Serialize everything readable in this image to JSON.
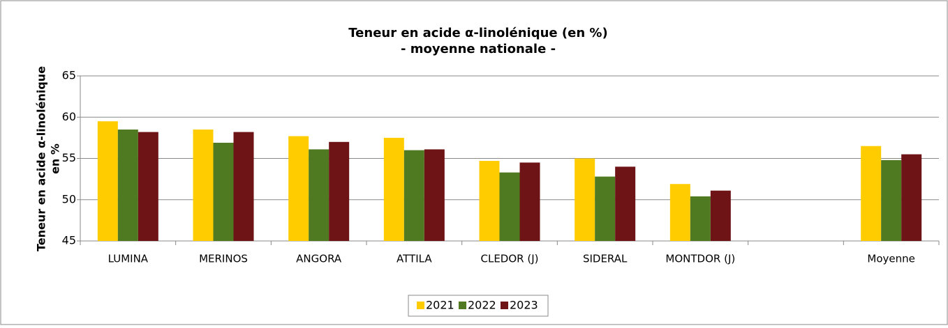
{
  "chart_data": {
    "type": "bar",
    "title": [
      "Teneur en acide α-linolénique (en %)",
      "- moyenne nationale -"
    ],
    "ylabel": [
      "Teneur en acide α-linolénique",
      "en %"
    ],
    "categories": [
      "LUMINA",
      "MERINOS",
      "ANGORA",
      "ATTILA",
      "CLEDOR (J)",
      "SIDERAL",
      "MONTDOR (J)",
      null,
      "Moyenne"
    ],
    "series": [
      {
        "name": "2021",
        "color": "#ffcc00",
        "values": [
          59.5,
          58.5,
          57.7,
          57.5,
          54.7,
          55.0,
          51.9,
          null,
          56.5
        ]
      },
      {
        "name": "2022",
        "color": "#4f7a21",
        "values": [
          58.5,
          56.9,
          56.1,
          56.0,
          53.3,
          52.8,
          50.4,
          null,
          54.8
        ]
      },
      {
        "name": "2023",
        "color": "#6e1416",
        "values": [
          58.2,
          58.2,
          57.0,
          56.1,
          54.5,
          54.0,
          51.1,
          null,
          55.5
        ]
      }
    ],
    "ylim": [
      45,
      65
    ],
    "yticks": [
      45,
      50,
      55,
      60,
      65
    ],
    "grid": true,
    "legend": "bottom"
  }
}
